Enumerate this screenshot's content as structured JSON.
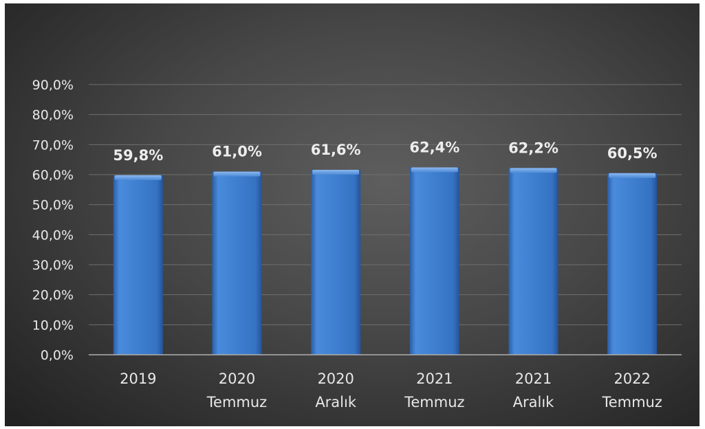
{
  "chart_data": {
    "type": "bar",
    "categories": [
      [
        "2019"
      ],
      [
        "2020",
        "Temmuz"
      ],
      [
        "2020",
        "Aralık"
      ],
      [
        "2021",
        "Temmuz"
      ],
      [
        "2021",
        "Aralık"
      ],
      [
        "2022",
        "Temmuz"
      ]
    ],
    "values": [
      59.8,
      61.0,
      61.6,
      62.4,
      62.2,
      60.5
    ],
    "data_labels": [
      "59,8%",
      "61,0%",
      "61,6%",
      "62,4%",
      "62,2%",
      "60,5%"
    ],
    "y_ticks": [
      "0,0%",
      "10,0%",
      "20,0%",
      "30,0%",
      "40,0%",
      "50,0%",
      "60,0%",
      "70,0%",
      "80,0%",
      "90,0%"
    ],
    "ylim": [
      0,
      90
    ],
    "title": "",
    "xlabel": "",
    "ylabel": "",
    "grid": true,
    "legend": "none",
    "colors": {
      "bar": "#3f7fd0",
      "bar_light": "#6aa3ea",
      "bar_dark": "#2a5ea8",
      "grid": "#6f6f6f",
      "axis": "#b0b0b0",
      "text": "#e8e8e8"
    }
  }
}
